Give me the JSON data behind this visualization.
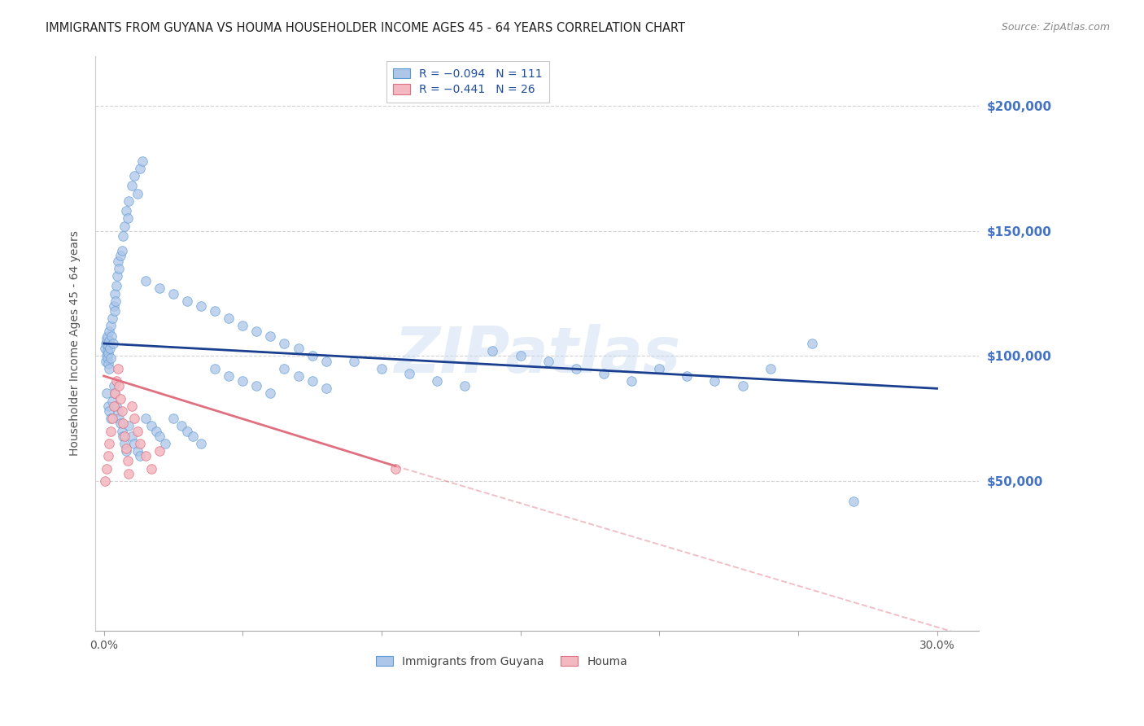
{
  "title": "IMMIGRANTS FROM GUYANA VS HOUMA HOUSEHOLDER INCOME AGES 45 - 64 YEARS CORRELATION CHART",
  "source": "Source: ZipAtlas.com",
  "xlabel_vals": [
    0.0,
    5.0,
    10.0,
    15.0,
    20.0,
    25.0,
    30.0
  ],
  "xlabel_labels_show": [
    "0.0%",
    "",
    "",
    "",
    "",
    "",
    "30.0%"
  ],
  "ylabel": "Householder Income Ages 45 - 64 years",
  "ylabel_ticks_labels": [
    "$50,000",
    "$100,000",
    "$150,000",
    "$200,000"
  ],
  "ylabel_ticks_vals": [
    50000,
    100000,
    150000,
    200000
  ],
  "xlim": [
    -0.3,
    31.5
  ],
  "ylim": [
    -10000,
    220000
  ],
  "legend_entries": [
    {
      "label": "R = −0.094   N = 111",
      "color": "#aec6e8"
    },
    {
      "label": "R = −0.441   N = 26",
      "color": "#f4b8c1"
    }
  ],
  "legend_bottom": [
    {
      "label": "Immigrants from Guyana",
      "color": "#aec6e8"
    },
    {
      "label": "Houma",
      "color": "#f4b8c1"
    }
  ],
  "watermark": "ZIPatlas",
  "guyana_scatter": [
    [
      0.05,
      103000
    ],
    [
      0.07,
      98000
    ],
    [
      0.08,
      105000
    ],
    [
      0.09,
      100000
    ],
    [
      0.1,
      107000
    ],
    [
      0.12,
      102000
    ],
    [
      0.13,
      108000
    ],
    [
      0.14,
      99000
    ],
    [
      0.15,
      104000
    ],
    [
      0.16,
      101000
    ],
    [
      0.17,
      97000
    ],
    [
      0.18,
      110000
    ],
    [
      0.19,
      95000
    ],
    [
      0.2,
      106000
    ],
    [
      0.22,
      103000
    ],
    [
      0.24,
      99000
    ],
    [
      0.25,
      112000
    ],
    [
      0.28,
      108000
    ],
    [
      0.3,
      115000
    ],
    [
      0.32,
      105000
    ],
    [
      0.35,
      120000
    ],
    [
      0.38,
      118000
    ],
    [
      0.4,
      125000
    ],
    [
      0.42,
      122000
    ],
    [
      0.45,
      128000
    ],
    [
      0.48,
      132000
    ],
    [
      0.5,
      138000
    ],
    [
      0.55,
      135000
    ],
    [
      0.6,
      140000
    ],
    [
      0.65,
      142000
    ],
    [
      0.7,
      148000
    ],
    [
      0.75,
      152000
    ],
    [
      0.8,
      158000
    ],
    [
      0.85,
      155000
    ],
    [
      0.9,
      162000
    ],
    [
      1.0,
      168000
    ],
    [
      1.1,
      172000
    ],
    [
      1.2,
      165000
    ],
    [
      1.3,
      175000
    ],
    [
      1.4,
      178000
    ],
    [
      0.1,
      85000
    ],
    [
      0.15,
      80000
    ],
    [
      0.2,
      78000
    ],
    [
      0.25,
      75000
    ],
    [
      0.3,
      82000
    ],
    [
      0.35,
      88000
    ],
    [
      0.4,
      85000
    ],
    [
      0.45,
      80000
    ],
    [
      0.5,
      78000
    ],
    [
      0.55,
      75000
    ],
    [
      0.6,
      73000
    ],
    [
      0.65,
      70000
    ],
    [
      0.7,
      68000
    ],
    [
      0.75,
      65000
    ],
    [
      0.8,
      62000
    ],
    [
      0.9,
      72000
    ],
    [
      1.0,
      68000
    ],
    [
      1.1,
      65000
    ],
    [
      1.2,
      62000
    ],
    [
      1.3,
      60000
    ],
    [
      1.5,
      75000
    ],
    [
      1.7,
      72000
    ],
    [
      1.9,
      70000
    ],
    [
      2.0,
      68000
    ],
    [
      2.2,
      65000
    ],
    [
      2.5,
      75000
    ],
    [
      2.8,
      72000
    ],
    [
      3.0,
      70000
    ],
    [
      3.2,
      68000
    ],
    [
      3.5,
      65000
    ],
    [
      4.0,
      95000
    ],
    [
      4.5,
      92000
    ],
    [
      5.0,
      90000
    ],
    [
      5.5,
      88000
    ],
    [
      6.0,
      85000
    ],
    [
      6.5,
      95000
    ],
    [
      7.0,
      92000
    ],
    [
      7.5,
      90000
    ],
    [
      8.0,
      87000
    ],
    [
      9.0,
      98000
    ],
    [
      10.0,
      95000
    ],
    [
      11.0,
      93000
    ],
    [
      12.0,
      90000
    ],
    [
      13.0,
      88000
    ],
    [
      14.0,
      102000
    ],
    [
      15.0,
      100000
    ],
    [
      16.0,
      98000
    ],
    [
      17.0,
      95000
    ],
    [
      18.0,
      93000
    ],
    [
      19.0,
      90000
    ],
    [
      20.0,
      95000
    ],
    [
      21.0,
      92000
    ],
    [
      22.0,
      90000
    ],
    [
      23.0,
      88000
    ],
    [
      24.0,
      95000
    ],
    [
      25.5,
      105000
    ],
    [
      27.0,
      42000
    ],
    [
      1.5,
      130000
    ],
    [
      2.0,
      127000
    ],
    [
      2.5,
      125000
    ],
    [
      3.0,
      122000
    ],
    [
      3.5,
      120000
    ],
    [
      4.0,
      118000
    ],
    [
      4.5,
      115000
    ],
    [
      5.0,
      112000
    ],
    [
      5.5,
      110000
    ],
    [
      6.0,
      108000
    ],
    [
      6.5,
      105000
    ],
    [
      7.0,
      103000
    ],
    [
      7.5,
      100000
    ],
    [
      8.0,
      98000
    ]
  ],
  "houma_scatter": [
    [
      0.05,
      50000
    ],
    [
      0.1,
      55000
    ],
    [
      0.15,
      60000
    ],
    [
      0.2,
      65000
    ],
    [
      0.25,
      70000
    ],
    [
      0.3,
      75000
    ],
    [
      0.35,
      80000
    ],
    [
      0.4,
      85000
    ],
    [
      0.45,
      90000
    ],
    [
      0.5,
      95000
    ],
    [
      0.55,
      88000
    ],
    [
      0.6,
      83000
    ],
    [
      0.65,
      78000
    ],
    [
      0.7,
      73000
    ],
    [
      0.75,
      68000
    ],
    [
      0.8,
      63000
    ],
    [
      0.85,
      58000
    ],
    [
      0.9,
      53000
    ],
    [
      1.0,
      80000
    ],
    [
      1.1,
      75000
    ],
    [
      1.2,
      70000
    ],
    [
      1.3,
      65000
    ],
    [
      1.5,
      60000
    ],
    [
      1.7,
      55000
    ],
    [
      2.0,
      62000
    ],
    [
      10.5,
      55000
    ]
  ],
  "guyana_reg_line": {
    "x": [
      0.0,
      30.0
    ],
    "y": [
      105000,
      87000
    ]
  },
  "houma_reg_line": {
    "x": [
      0.0,
      10.5
    ],
    "y": [
      92000,
      56000
    ]
  },
  "houma_reg_ext": {
    "x": [
      10.5,
      30.5
    ],
    "y": [
      56000,
      -10000
    ]
  },
  "scatter_size": 70,
  "guyana_color": "#aec6e8",
  "houma_color": "#f4b8c1",
  "guyana_edge": "#5b9bd5",
  "houma_edge": "#e07080",
  "reg_guyana_color": "#1a3f8f",
  "reg_houma_color": "#e07080",
  "bg_color": "#ffffff",
  "grid_color": "#c8c8c8",
  "title_color": "#222222",
  "right_label_color": "#4472c4",
  "watermark_color": "#c5d8f0",
  "watermark_alpha": 0.45,
  "title_fontsize": 10.5,
  "source_fontsize": 9,
  "axis_label_fontsize": 10,
  "legend_fontsize": 10,
  "tick_fontsize": 10
}
